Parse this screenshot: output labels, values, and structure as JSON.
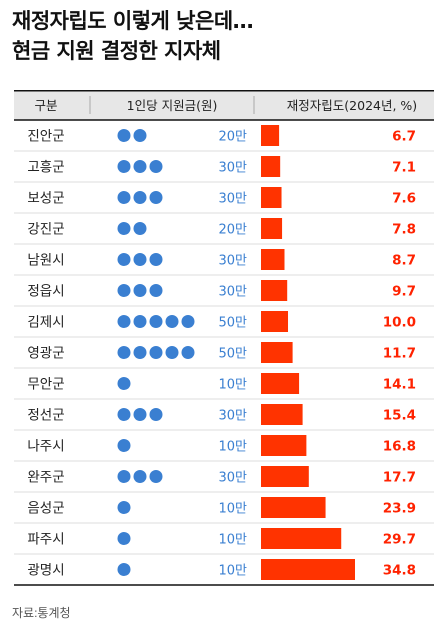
{
  "title_lines": [
    "재정자립도 이렇게 낮은데…",
    "현금 지원 결정한 지자체"
  ],
  "source": "자료:통계청",
  "colors": {
    "dot": "#3a7fd1",
    "amount_text": "#3a7fd1",
    "bar": "#ff3300",
    "value_text": "#ff2200",
    "header_bg": "#e7e7e7",
    "rule": "#111111",
    "row_line": "#dddddd"
  },
  "chart_data": {
    "type": "bar",
    "orientation": "horizontal",
    "columns": [
      "구분",
      "1인당 지원금(원)",
      "재정자립도(2024년, %)"
    ],
    "categories": [
      "진안군",
      "고흥군",
      "보성군",
      "강진군",
      "남원시",
      "정읍시",
      "김제시",
      "영광군",
      "무안군",
      "정선군",
      "나주시",
      "완주군",
      "음성군",
      "파주시",
      "광명시"
    ],
    "support_dots": [
      2,
      3,
      3,
      2,
      3,
      3,
      5,
      5,
      1,
      3,
      1,
      3,
      1,
      1,
      1
    ],
    "support_labels": [
      "20만",
      "30만",
      "30만",
      "20만",
      "30만",
      "30만",
      "50만",
      "50만",
      "10만",
      "30만",
      "10만",
      "30만",
      "10만",
      "10만",
      "10만"
    ],
    "values": [
      6.7,
      7.1,
      7.6,
      7.8,
      8.7,
      9.7,
      10.0,
      11.7,
      14.1,
      15.4,
      16.8,
      17.7,
      23.9,
      29.7,
      34.8
    ],
    "value_labels": [
      "6.7",
      "7.1",
      "7.6",
      "7.8",
      "8.7",
      "9.7",
      "10.0",
      "11.7",
      "14.1",
      "15.4",
      "16.8",
      "17.7",
      "23.9",
      "29.7",
      "34.8"
    ]
  }
}
